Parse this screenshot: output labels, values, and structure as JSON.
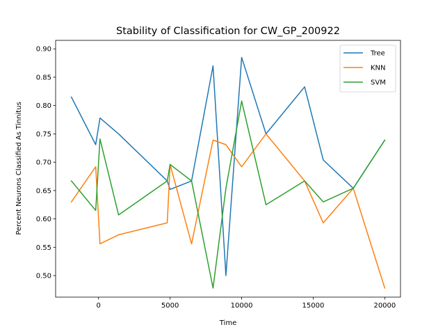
{
  "chart_data": {
    "type": "line",
    "title": "Stability of Classification for CW_GP_200922",
    "xlabel": "Time",
    "ylabel": "Percent Neurons Classified As Tinnitus",
    "xlim": [
      -3000,
      21100
    ],
    "ylim": [
      0.462,
      0.915
    ],
    "xticks": [
      0,
      5000,
      10000,
      15000,
      20000
    ],
    "xtick_labels": [
      "0",
      "5000",
      "10000",
      "15000",
      "20000"
    ],
    "yticks": [
      0.5,
      0.55,
      0.6,
      0.65,
      0.7,
      0.75,
      0.8,
      0.85,
      0.9
    ],
    "ytick_labels": [
      "0.50",
      "0.55",
      "0.60",
      "0.65",
      "0.70",
      "0.75",
      "0.80",
      "0.85",
      "0.90"
    ],
    "grid": false,
    "legend_position": "top-right",
    "series": [
      {
        "name": "Tree",
        "color": "#1f77b4",
        "x": [
          -1900,
          -200,
          100,
          1400,
          4800,
          5000,
          6500,
          8000,
          8900,
          10000,
          11700,
          14400,
          15700,
          17800,
          20000
        ],
        "y": [
          0.815,
          0.731,
          0.778,
          0.75,
          0.667,
          0.652,
          0.667,
          0.87,
          0.5,
          0.885,
          0.75,
          0.833,
          0.704,
          0.654,
          0.739
        ]
      },
      {
        "name": "KNN",
        "color": "#ff7f0e",
        "x": [
          -1900,
          -200,
          100,
          1400,
          4800,
          5000,
          6500,
          8000,
          8900,
          10000,
          11700,
          14400,
          15700,
          17800,
          20000
        ],
        "y": [
          0.63,
          0.692,
          0.556,
          0.572,
          0.593,
          0.696,
          0.556,
          0.739,
          0.731,
          0.692,
          0.75,
          0.667,
          0.593,
          0.654,
          0.478
        ]
      },
      {
        "name": "SVM",
        "color": "#2ca02c",
        "x": [
          -1900,
          -200,
          100,
          1400,
          4800,
          5000,
          6500,
          8000,
          8900,
          10000,
          11700,
          14400,
          15700,
          17800,
          20000
        ],
        "y": [
          0.667,
          0.615,
          0.741,
          0.607,
          0.667,
          0.696,
          0.667,
          0.478,
          0.654,
          0.808,
          0.625,
          0.667,
          0.63,
          0.654,
          0.739
        ]
      }
    ]
  }
}
